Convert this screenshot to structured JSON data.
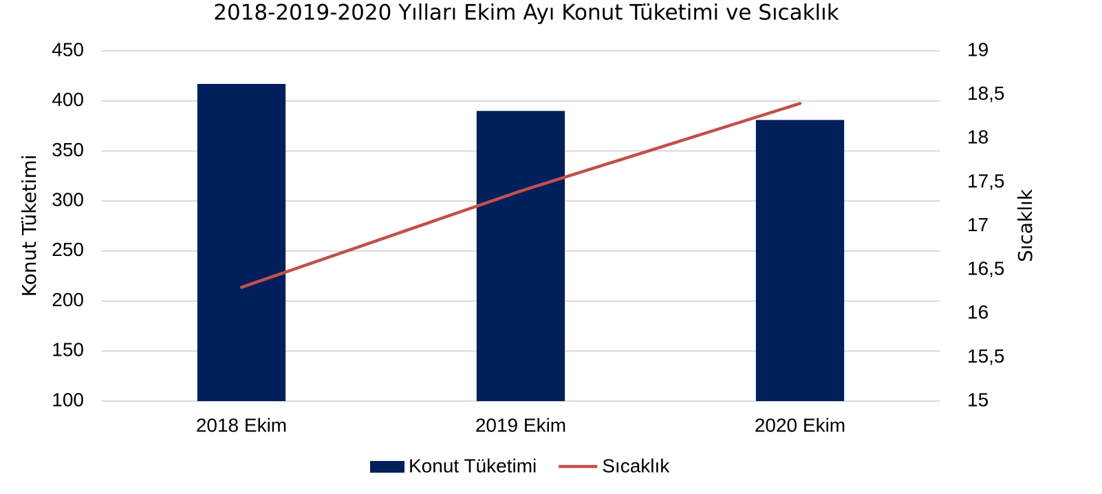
{
  "chart_data": {
    "type": "bar",
    "title": "2018-2019-2020 Yılları Ekim Ayı Konut Tüketimi ve Sıcaklık",
    "y_label": "Konut Tüketimi",
    "y2_label": "Sıcaklık",
    "categories": [
      "2018 Ekim",
      "2019 Ekim",
      "2020 Ekim"
    ],
    "series": [
      {
        "name": "Konut Tüketimi",
        "type": "bar",
        "color": "#001f5b",
        "values": [
          417,
          390,
          381
        ]
      },
      {
        "name": "Sıcaklık",
        "type": "line",
        "axis": "y2",
        "color": "#c0504d",
        "values": [
          16.3,
          17.4,
          18.4
        ]
      }
    ],
    "ylim": [
      100,
      450
    ],
    "yticks": [
      100,
      150,
      200,
      250,
      300,
      350,
      400,
      450
    ],
    "y2lim": [
      15,
      19
    ],
    "y2ticks": [
      15,
      {
        "value": 15.5,
        "label": "15,5"
      },
      16,
      {
        "value": 16.5,
        "label": "16,5"
      },
      17,
      {
        "value": 17.5,
        "label": "17,5"
      },
      18,
      {
        "value": 18.5,
        "label": "18,5"
      },
      19
    ],
    "grid": true,
    "legend": "bottom"
  }
}
